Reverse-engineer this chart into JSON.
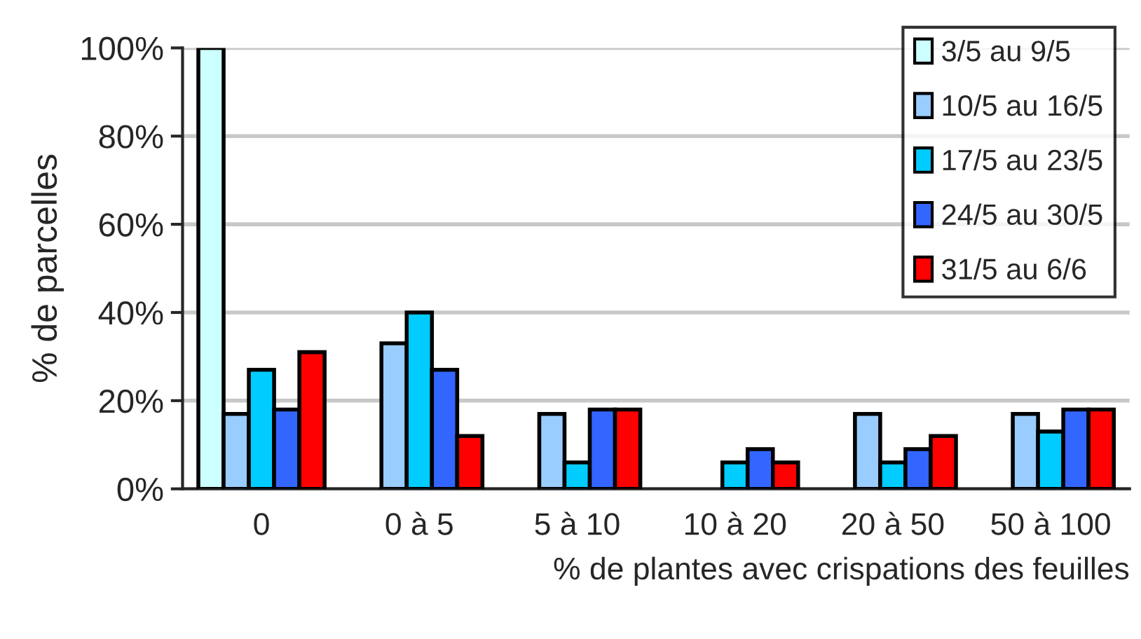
{
  "chart_data": {
    "type": "bar",
    "xlabel": "% de plantes avec crispations des feuilles",
    "ylabel": "% de parcelles",
    "categories": [
      "0",
      "0 à 5",
      "5 à 10",
      "10 à 20",
      "20 à 50",
      "50 à 100"
    ],
    "series": [
      {
        "name": "3/5 au 9/5",
        "color": "#ccffff",
        "values": [
          100,
          null,
          null,
          null,
          null,
          null
        ]
      },
      {
        "name": "10/5 au 16/5",
        "color": "#99ccff",
        "values": [
          17,
          33,
          17,
          null,
          17,
          17
        ]
      },
      {
        "name": "17/5 au 23/5",
        "color": "#00ccff",
        "values": [
          27,
          40,
          6,
          6,
          6,
          13
        ]
      },
      {
        "name": "24/5 au 30/5",
        "color": "#3366ff",
        "values": [
          18,
          27,
          18,
          9,
          9,
          18
        ]
      },
      {
        "name": "31/5 au 6/6",
        "color": "#ff0000",
        "values": [
          31,
          12,
          18,
          6,
          12,
          18
        ]
      }
    ],
    "ylim": [
      0,
      100
    ],
    "yticks": [
      {
        "value": 0,
        "label": "0%"
      },
      {
        "value": 20,
        "label": "20%"
      },
      {
        "value": 40,
        "label": "40%"
      },
      {
        "value": 60,
        "label": "60%"
      },
      {
        "value": 80,
        "label": "80%"
      },
      {
        "value": 100,
        "label": "100%"
      }
    ],
    "grid": "y",
    "legend": "top right"
  }
}
